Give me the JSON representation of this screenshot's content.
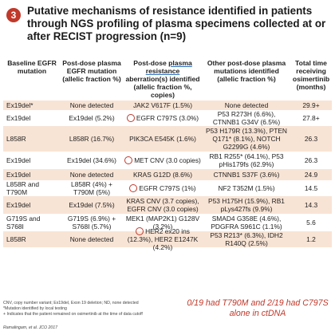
{
  "slide": {
    "number": "3",
    "title": "Putative mechanisms of resistance identified in patients through NGS profiling of plasma specimens collected at or after RECIST progression (n=9)"
  },
  "table": {
    "headers": {
      "baseline": "Baseline EGFR mutation",
      "post_dose_egfr": "Post-dose plasma EGFR mutation (allelic fraction %)",
      "post_dose_resistance_pre": "Post-dose ",
      "post_dose_resistance_link": "plasma resistance",
      "post_dose_resistance_post": " aberration(s) identified (allelic fraction %, copies)",
      "other_mutations": "Other post-dose plasma mutations identified (allelic fraction %)",
      "total_time": "Total time receiving osimertinib (months)"
    },
    "rows": [
      {
        "baseline": "Ex19del*",
        "egfr": "None detected",
        "resistance": "JAK2 V617F (1.5%)",
        "marked": false,
        "other": "None detected",
        "time": "29.9+",
        "style": "alt"
      },
      {
        "baseline": "Ex19del",
        "egfr": "Ex19del (5.2%)",
        "resistance": "EGFR C797S (3.0%)",
        "marked": true,
        "other": "P53 R273H (6.6%), CTNNB1 G34V (6.5%)",
        "time": "27.8+",
        "style": "plain"
      },
      {
        "baseline": "L858R",
        "egfr": "L858R (16.7%)",
        "resistance": "PIK3CA E545K (1.6%)",
        "marked": false,
        "other": "P53 H179R (13.3%), PTEN Q171* (8.1%), NOTCH G2299G (4.6%)",
        "time": "26.3",
        "style": "alt"
      },
      {
        "baseline": "Ex19del",
        "egfr": "Ex19del (34.6%)",
        "resistance": "MET CNV (3.0 copies)",
        "marked": true,
        "other": "RB1 R255* (64.1%), P53 pHis179fs (62.9%)",
        "time": "26.3",
        "style": "plain"
      },
      {
        "baseline": "Ex19del",
        "egfr": "None detected",
        "resistance": "KRAS G12D (8.6%)",
        "marked": false,
        "other": "CTNNB1 S37F (3.6%)",
        "time": "24.9",
        "style": "alt"
      },
      {
        "baseline": "L858R and T790M",
        "egfr": "L858R (4%) + T790M (5%)",
        "resistance": "EGFR C797S (1%)",
        "marked": true,
        "other": "NF2 T352M (1.5%)",
        "time": "14.5",
        "style": "plain"
      },
      {
        "baseline": "Ex19del",
        "egfr": "Ex19del (7.5%)",
        "resistance": "KRAS CNV (3.7 copies), EGFR CNV (3.0 copies)",
        "marked": false,
        "other": "P53 H175H (15.9%), RB1 pLys427fs (9.9%)",
        "time": "14.3",
        "style": "alt"
      },
      {
        "baseline": "G719S and S768I",
        "egfr": "G719S (6.9%) + S768I (5.7%)",
        "resistance": "MEK1 (MAP2K1) G128V (3.2%)",
        "marked": false,
        "other": "SMAD4 G358E (4.6%), PDGFRA S961C (1.1%)",
        "time": "5.6",
        "style": "plain"
      },
      {
        "baseline": "L858R",
        "egfr": "None detected",
        "resistance": "HER2 ex20 ins (12.3%), HER2 E1247K (4.2%)",
        "marked": true,
        "other": "P53 R213* (6.3%), IDH2 R140Q (2.5%)",
        "time": "1.2",
        "style": "alt"
      }
    ]
  },
  "footnotes": {
    "line1": "CNV, copy number variant; Ex19del, Exon 19 deletion; ND, none detected",
    "line2": "*Mutation identified by local testing",
    "line3": "+ Indicates that the patient remained on osimertinib at the time of data cutoff"
  },
  "citation": "Ramalingam, et al. JCO 2017",
  "callout": {
    "line1": "0/19 had T790M and 2/19 had C797S",
    "line2": "alone in ctDNA"
  },
  "colors": {
    "accent": "#c0392b",
    "row_alt": "#f8e4d5",
    "link": "#2e6fbf"
  }
}
